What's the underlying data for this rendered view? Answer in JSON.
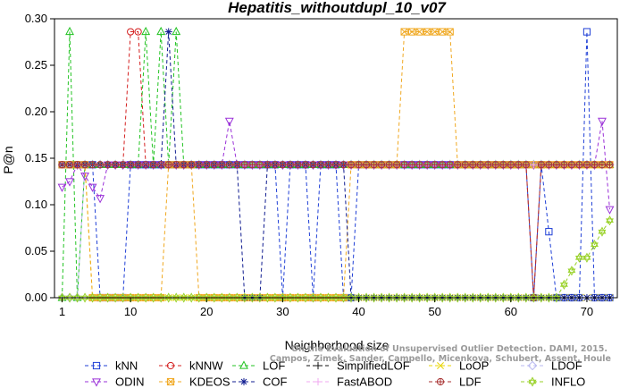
{
  "chart_data": {
    "type": "line",
    "title": "Hepatitis_withoutdupl_10_v07",
    "xlabel": "Neighborhood size",
    "ylabel": "P@n",
    "xlim": [
      0,
      74
    ],
    "ylim": [
      0,
      0.3
    ],
    "x_ticks": [
      1,
      10,
      20,
      30,
      40,
      50,
      60,
      70
    ],
    "y_ticks": [
      "0.00",
      "0.05",
      "0.10",
      "0.15",
      "0.20",
      "0.25",
      "0.30"
    ],
    "legend_position": "bottom",
    "credit_lines": [
      "Campos, Zimek, Sander, Campello, Micenkova, Schubert, Assent, Houle",
      "On the Evaluation of Unsupervised Outlier Detection. DAMI, 2015."
    ],
    "series": [
      {
        "name": "kNN",
        "color": "#1f3fd6",
        "marker": "square",
        "points": [
          [
            1,
            0.143
          ],
          [
            5,
            0.143
          ],
          [
            6,
            0
          ],
          [
            9,
            0
          ],
          [
            10,
            0.143
          ],
          [
            29,
            0.143
          ],
          [
            30,
            0
          ],
          [
            31,
            0.143
          ],
          [
            33,
            0.143
          ],
          [
            34,
            0
          ],
          [
            35,
            0.143
          ],
          [
            37,
            0.143
          ],
          [
            38,
            0
          ],
          [
            39,
            0
          ],
          [
            40,
            0.143
          ],
          [
            62,
            0.143
          ],
          [
            63,
            0
          ],
          [
            64,
            0.143
          ],
          [
            65,
            0.071
          ],
          [
            66,
            0
          ],
          [
            69,
            0
          ],
          [
            70,
            0.286
          ],
          [
            71,
            0
          ],
          [
            73,
            0
          ]
        ]
      },
      {
        "name": "kNNW",
        "color": "#d42020",
        "marker": "circle",
        "points": [
          [
            1,
            0.143
          ],
          [
            9,
            0.143
          ],
          [
            10,
            0.286
          ],
          [
            11,
            0.286
          ],
          [
            12,
            0.143
          ],
          [
            62,
            0.143
          ],
          [
            63,
            0
          ],
          [
            64,
            0.143
          ],
          [
            73,
            0.143
          ]
        ]
      },
      {
        "name": "LOF",
        "color": "#22c322",
        "marker": "triangle",
        "points": [
          [
            1,
            0
          ],
          [
            2,
            0.286
          ],
          [
            3,
            0
          ],
          [
            4,
            0.143
          ],
          [
            11,
            0.143
          ],
          [
            12,
            0.286
          ],
          [
            13,
            0.143
          ],
          [
            14,
            0.286
          ],
          [
            15,
            0.143
          ],
          [
            16,
            0.286
          ],
          [
            17,
            0.143
          ],
          [
            73,
            0.143
          ]
        ]
      },
      {
        "name": "SimplifiedLOF",
        "color": "#111111",
        "marker": "plus",
        "points": [
          [
            1,
            0.143
          ],
          [
            73,
            0.143
          ]
        ]
      },
      {
        "name": "LoOP",
        "color": "#e8d400",
        "marker": "x",
        "points": [
          [
            1,
            0.143
          ],
          [
            4,
            0.143
          ],
          [
            5,
            0
          ],
          [
            73,
            0
          ]
        ]
      },
      {
        "name": "LDOF",
        "color": "#b8b8f0",
        "marker": "diamond",
        "points": [
          [
            1,
            0
          ],
          [
            3,
            0
          ],
          [
            4,
            0.143
          ],
          [
            73,
            0.143
          ]
        ]
      },
      {
        "name": "ODIN",
        "color": "#9a30d8",
        "marker": "triangle-down",
        "points": [
          [
            1,
            0.119
          ],
          [
            2,
            0.125
          ],
          [
            3,
            0.143
          ],
          [
            6,
            0.107
          ],
          [
            7,
            0.143
          ],
          [
            22,
            0.143
          ],
          [
            23,
            0.19
          ],
          [
            24,
            0.143
          ],
          [
            71,
            0.143
          ],
          [
            72,
            0.19
          ],
          [
            73,
            0.095
          ]
        ]
      },
      {
        "name": "KDEOS",
        "color": "#f0a820",
        "marker": "square-x",
        "points": [
          [
            1,
            0.143
          ],
          [
            4,
            0.143
          ],
          [
            5,
            0
          ],
          [
            14,
            0
          ],
          [
            15,
            0.143
          ],
          [
            18,
            0.143
          ],
          [
            19,
            0
          ],
          [
            38,
            0
          ],
          [
            39,
            0.143
          ],
          [
            45,
            0.143
          ],
          [
            46,
            0.286
          ],
          [
            52,
            0.286
          ],
          [
            53,
            0.143
          ],
          [
            73,
            0.143
          ]
        ]
      },
      {
        "name": "COF",
        "color": "#101c90",
        "marker": "star",
        "points": [
          [
            1,
            0.143
          ],
          [
            14,
            0.143
          ],
          [
            15,
            0.286
          ],
          [
            16,
            0.143
          ],
          [
            24,
            0.143
          ],
          [
            25,
            0
          ],
          [
            26,
            0
          ],
          [
            27,
            0
          ],
          [
            28,
            0.143
          ],
          [
            38,
            0.143
          ],
          [
            39,
            0
          ],
          [
            73,
            0
          ]
        ]
      },
      {
        "name": "FastABOD",
        "color": "#f0a8f0",
        "marker": "plus",
        "points": [
          [
            1,
            0.143
          ],
          [
            73,
            0.143
          ]
        ]
      },
      {
        "name": "LDF",
        "color": "#a83232",
        "marker": "circle-plus",
        "points": [
          [
            1,
            0.143
          ],
          [
            62,
            0.143
          ],
          [
            63,
            0
          ],
          [
            64,
            0.143
          ],
          [
            73,
            0.143
          ]
        ]
      },
      {
        "name": "INFLO",
        "color": "#9ad22a",
        "marker": "star-of-david",
        "points": [
          [
            1,
            0
          ],
          [
            62,
            0
          ],
          [
            66,
            0
          ],
          [
            67,
            0.014
          ],
          [
            68,
            0.029
          ],
          [
            69,
            0.043
          ],
          [
            70,
            0.043
          ],
          [
            71,
            0.057
          ],
          [
            72,
            0.071
          ],
          [
            73,
            0.083
          ]
        ]
      }
    ],
    "legend": {
      "rows": [
        [
          "kNN",
          "kNNW",
          "LOF",
          "SimplifiedLOF",
          "LoOP",
          "LDOF"
        ],
        [
          "ODIN",
          "KDEOS",
          "COF",
          "FastABOD",
          "LDF",
          "INFLO"
        ]
      ]
    }
  }
}
